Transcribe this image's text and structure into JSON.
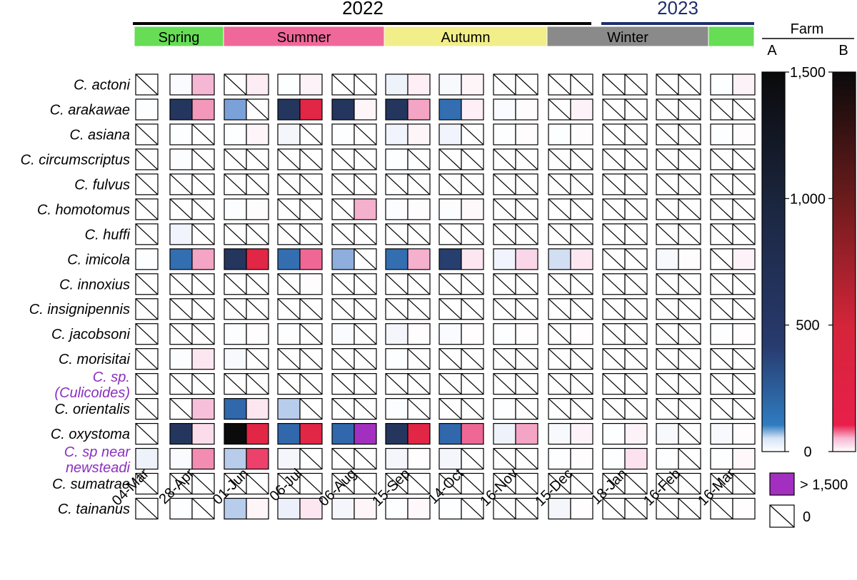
{
  "chart_data": {
    "type": "heatmap",
    "years": [
      {
        "label": "2022",
        "color": "#000000"
      },
      {
        "label": "2023",
        "color": "#1f2f6b"
      }
    ],
    "seasons": [
      {
        "label": "Spring",
        "color": "#66dd55"
      },
      {
        "label": "Summer",
        "color": "#f0679a"
      },
      {
        "label": "Autumn",
        "color": "#f2ee8a"
      },
      {
        "label": "Winter",
        "color": "#8a8a8a"
      },
      {
        "label": "",
        "color": "#66dd55"
      }
    ],
    "dates": [
      "04-Mar",
      "28-Apr",
      "01-Jun",
      "06-Jul",
      "06-Aug",
      "15-Sep",
      "14-Oct",
      "16-Nov",
      "15-Dec",
      "18-Jan",
      "16-Feb",
      "16-Mar"
    ],
    "species": [
      {
        "name": "C. actoni",
        "color": "#000000"
      },
      {
        "name": "C. arakawae",
        "color": "#000000"
      },
      {
        "name": "C. asiana",
        "color": "#000000"
      },
      {
        "name": "C. circumscriptus",
        "color": "#000000"
      },
      {
        "name": "C. fulvus",
        "color": "#000000"
      },
      {
        "name": "C. homotomus",
        "color": "#000000"
      },
      {
        "name": "C. huffi",
        "color": "#000000"
      },
      {
        "name": "C. imicola",
        "color": "#000000"
      },
      {
        "name": "C. innoxius",
        "color": "#000000"
      },
      {
        "name": "C. insignipennis",
        "color": "#000000"
      },
      {
        "name": "C. jacobsoni",
        "color": "#000000"
      },
      {
        "name": "C. morisitai",
        "color": "#000000"
      },
      {
        "name": "C. sp.",
        "name2": "(Culicoides)",
        "color": "#8a2fc0"
      },
      {
        "name": "C. orientalis",
        "color": "#000000"
      },
      {
        "name": "C. oxystoma",
        "color": "#000000"
      },
      {
        "name": "C. sp near",
        "name2": "newsteadi",
        "color": "#8a2fc0"
      },
      {
        "name": "C. sumatrae",
        "color": "#000000"
      },
      {
        "name": "C. tainanus",
        "color": "#000000"
      }
    ],
    "farms": [
      "A",
      "B"
    ],
    "farm_title": "Farm",
    "scale_max": 1500,
    "colorbar_ticks": [
      {
        "value": 0,
        "label": "0"
      },
      {
        "value": 500,
        "label": "500"
      },
      {
        "value": 1000,
        "label": "1,000"
      },
      {
        "value": 1500,
        "label": "1,500"
      }
    ],
    "legend": {
      "over_label": "> 1,500",
      "over_color": "#a32fc0",
      "zero_label": "0"
    },
    "farm_A": [
      [
        0,
        10,
        0,
        3,
        0,
        30,
        15,
        0,
        0,
        0,
        0,
        3
      ],
      [
        3,
        1000,
        300,
        1000,
        1000,
        1000,
        600,
        10,
        0,
        0,
        0,
        0
      ],
      [
        0,
        3,
        3,
        20,
        3,
        25,
        25,
        3,
        3,
        0,
        0,
        3
      ],
      [
        0,
        5,
        0,
        0,
        0,
        3,
        0,
        0,
        0,
        0,
        0,
        0
      ],
      [
        0,
        0,
        0,
        0,
        0,
        0,
        0,
        0,
        0,
        0,
        0,
        0
      ],
      [
        0,
        0,
        5,
        0,
        0,
        5,
        5,
        0,
        0,
        0,
        0,
        0
      ],
      [
        0,
        25,
        0,
        0,
        0,
        0,
        0,
        0,
        0,
        0,
        0,
        0
      ],
      [
        3,
        600,
        1000,
        600,
        250,
        600,
        900,
        25,
        100,
        0,
        15,
        0
      ],
      [
        0,
        0,
        0,
        0,
        0,
        0,
        0,
        0,
        0,
        0,
        0,
        0
      ],
      [
        0,
        0,
        0,
        0,
        0,
        0,
        0,
        0,
        0,
        0,
        0,
        0
      ],
      [
        0,
        0,
        5,
        3,
        10,
        20,
        10,
        3,
        0,
        0,
        0,
        3
      ],
      [
        0,
        5,
        15,
        0,
        0,
        3,
        0,
        0,
        0,
        0,
        0,
        0
      ],
      [
        0,
        0,
        0,
        0,
        0,
        0,
        0,
        0,
        0,
        0,
        0,
        0
      ],
      [
        0,
        0,
        650,
        150,
        0,
        5,
        0,
        3,
        0,
        0,
        0,
        0
      ],
      [
        0,
        1000,
        1500,
        650,
        650,
        1000,
        650,
        30,
        15,
        3,
        15,
        15
      ],
      [
        30,
        10,
        150,
        20,
        0,
        20,
        20,
        0,
        3,
        3,
        3,
        3
      ],
      [
        0,
        0,
        0,
        0,
        0,
        0,
        0,
        0,
        0,
        0,
        0,
        0
      ],
      [
        0,
        3,
        150,
        40,
        20,
        3,
        3,
        0,
        20,
        0,
        0,
        0
      ]
    ],
    "farm_B": [
      [
        null,
        220,
        30,
        20,
        0,
        25,
        15,
        0,
        0,
        0,
        0,
        20
      ],
      [
        null,
        350,
        0,
        1000,
        15,
        300,
        25,
        5,
        20,
        0,
        0,
        0
      ],
      [
        null,
        0,
        15,
        0,
        0,
        15,
        0,
        5,
        5,
        0,
        0,
        5
      ],
      [
        null,
        0,
        0,
        0,
        0,
        0,
        0,
        0,
        0,
        0,
        0,
        0
      ],
      [
        null,
        0,
        0,
        0,
        0,
        0,
        0,
        0,
        0,
        0,
        0,
        0
      ],
      [
        null,
        0,
        5,
        0,
        250,
        5,
        10,
        0,
        0,
        0,
        0,
        0
      ],
      [
        null,
        0,
        0,
        0,
        0,
        0,
        0,
        0,
        0,
        0,
        0,
        0
      ],
      [
        null,
        300,
        1000,
        600,
        0,
        250,
        40,
        80,
        40,
        0,
        5,
        20
      ],
      [
        null,
        0,
        0,
        5,
        0,
        0,
        0,
        0,
        0,
        0,
        0,
        0
      ],
      [
        null,
        0,
        0,
        0,
        0,
        0,
        0,
        0,
        0,
        0,
        0,
        0
      ],
      [
        null,
        0,
        3,
        0,
        0,
        3,
        3,
        3,
        3,
        0,
        0,
        3
      ],
      [
        null,
        40,
        0,
        0,
        0,
        0,
        0,
        0,
        0,
        0,
        0,
        0
      ],
      [
        null,
        0,
        0,
        0,
        0,
        0,
        0,
        0,
        0,
        0,
        0,
        0
      ],
      [
        null,
        180,
        40,
        0,
        0,
        0,
        0,
        0,
        0,
        0,
        0,
        0
      ],
      [
        null,
        60,
        1000,
        1000,
        2000,
        1000,
        600,
        300,
        20,
        20,
        0,
        5
      ],
      [
        null,
        400,
        800,
        0,
        0,
        3,
        0,
        0,
        5,
        50,
        0,
        10
      ],
      [
        null,
        0,
        0,
        0,
        0,
        0,
        0,
        0,
        0,
        0,
        0,
        0
      ],
      [
        null,
        0,
        15,
        40,
        15,
        10,
        0,
        0,
        3,
        0,
        0,
        3
      ]
    ]
  }
}
